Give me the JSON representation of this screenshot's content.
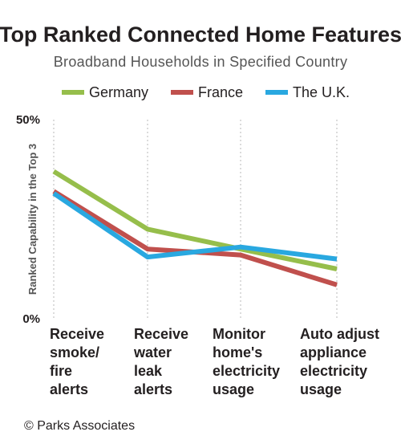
{
  "source": "© Parks Associates",
  "colors": {
    "Germany": "#96be4b",
    "France": "#c0504d",
    "The U.K.": "#29a8e0"
  },
  "chart_data": {
    "type": "line",
    "title": "Top Ranked Connected Home Features",
    "subtitle": "Broadband Households in Specified Country",
    "ylabel": "Ranked Capability in the Top 3",
    "xlabel": "",
    "ylim": [
      0,
      50
    ],
    "y_ticks": [
      "0%",
      "50%"
    ],
    "y_tick_values": [
      0,
      50
    ],
    "legend_position": "top",
    "grid": "vertical dotted",
    "categories": [
      [
        "Receive",
        "smoke/",
        "fire",
        "alerts"
      ],
      [
        "Receive",
        "water",
        "leak",
        "alerts"
      ],
      [
        "Monitor",
        "home's",
        "electricity",
        "usage"
      ],
      [
        "Auto adjust",
        "appliance",
        "electricity",
        "usage"
      ]
    ],
    "series": [
      {
        "name": "Germany",
        "values": [
          37,
          22.5,
          17.5,
          12.5
        ]
      },
      {
        "name": "France",
        "values": [
          32,
          17.5,
          16,
          8.5
        ]
      },
      {
        "name": "The U.K.",
        "values": [
          31.5,
          15.5,
          18,
          15
        ]
      }
    ]
  }
}
